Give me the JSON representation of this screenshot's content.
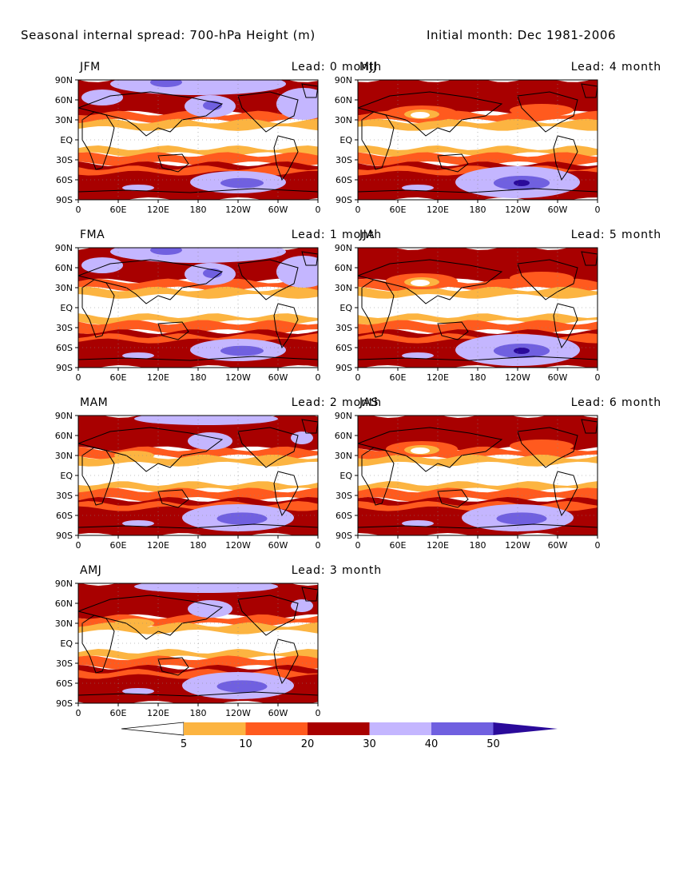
{
  "title": "Seasonal internal spread: 700-hPa Height (m)",
  "subtitle": "Initial month: Dec 1981-2006",
  "lat_labels": [
    "90N",
    "60N",
    "30N",
    "EQ",
    "30S",
    "60S",
    "90S"
  ],
  "lon_labels": [
    "0",
    "60E",
    "120E",
    "180",
    "120W",
    "60W",
    "0"
  ],
  "panels": [
    {
      "season": "JFM",
      "lead_label": "Lead: 0 month"
    },
    {
      "season": "MJJ",
      "lead_label": "Lead: 4 month"
    },
    {
      "season": "FMA",
      "lead_label": "Lead: 1 month"
    },
    {
      "season": "JJA",
      "lead_label": "Lead: 5 month"
    },
    {
      "season": "MAM",
      "lead_label": "Lead: 2 month"
    },
    {
      "season": "JAS",
      "lead_label": "Lead: 6 month"
    },
    {
      "season": "AMJ",
      "lead_label": "Lead: 3 month"
    }
  ],
  "colorbar": {
    "ticks": [
      "5",
      "10",
      "20",
      "30",
      "40",
      "50"
    ],
    "colors": [
      "#ffffff",
      "#fcb441",
      "#ff5a1e",
      "#a80000",
      "#c4b6ff",
      "#7060e0",
      "#2a0a9a"
    ]
  }
}
